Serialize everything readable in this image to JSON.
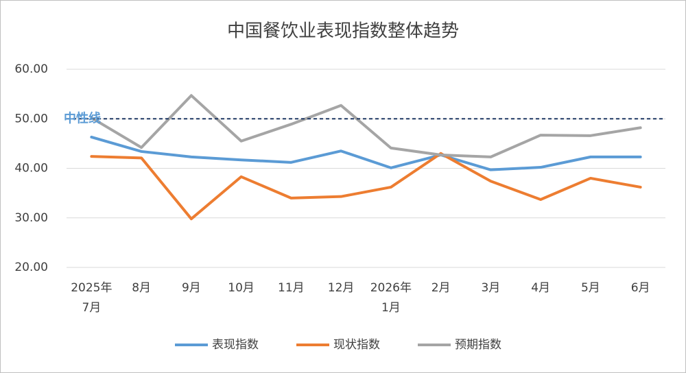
{
  "chart_data": {
    "type": "line",
    "title": "中国餐饮业表现指数整体趋势",
    "categories": [
      [
        "2025年",
        "7月"
      ],
      "8月",
      "9月",
      "10月",
      "11月",
      "12月",
      [
        "2026年",
        "1月"
      ],
      "2月",
      "3月",
      "4月",
      "5月",
      "6月"
    ],
    "series": [
      {
        "name": "表现指数",
        "color": "#5b9bd5",
        "values": [
          46.3,
          43.4,
          42.3,
          41.7,
          41.2,
          43.5,
          40.1,
          42.7,
          39.7,
          40.2,
          42.3,
          42.3
        ]
      },
      {
        "name": "现状指数",
        "color": "#ed7d31",
        "values": [
          42.4,
          42.1,
          29.8,
          38.3,
          34.0,
          34.3,
          36.2,
          43.0,
          37.4,
          33.7,
          38.0,
          36.2
        ]
      },
      {
        "name": "预期指数",
        "color": "#a5a5a5",
        "values": [
          50.2,
          44.2,
          54.7,
          45.5,
          48.9,
          52.7,
          44.1,
          42.7,
          42.3,
          46.7,
          46.6,
          48.2
        ]
      }
    ],
    "reference_line": {
      "value": 50,
      "label": "中性线",
      "color": "#1f3864"
    },
    "ylim": [
      20,
      60
    ],
    "yticks": [
      {
        "value": 20,
        "label": "20.00"
      },
      {
        "value": 30,
        "label": "30.00"
      },
      {
        "value": 40,
        "label": "40.00"
      },
      {
        "value": 50,
        "label": "50.00"
      },
      {
        "value": 60,
        "label": "60.00"
      }
    ],
    "grid": true,
    "legend": "bottom"
  }
}
